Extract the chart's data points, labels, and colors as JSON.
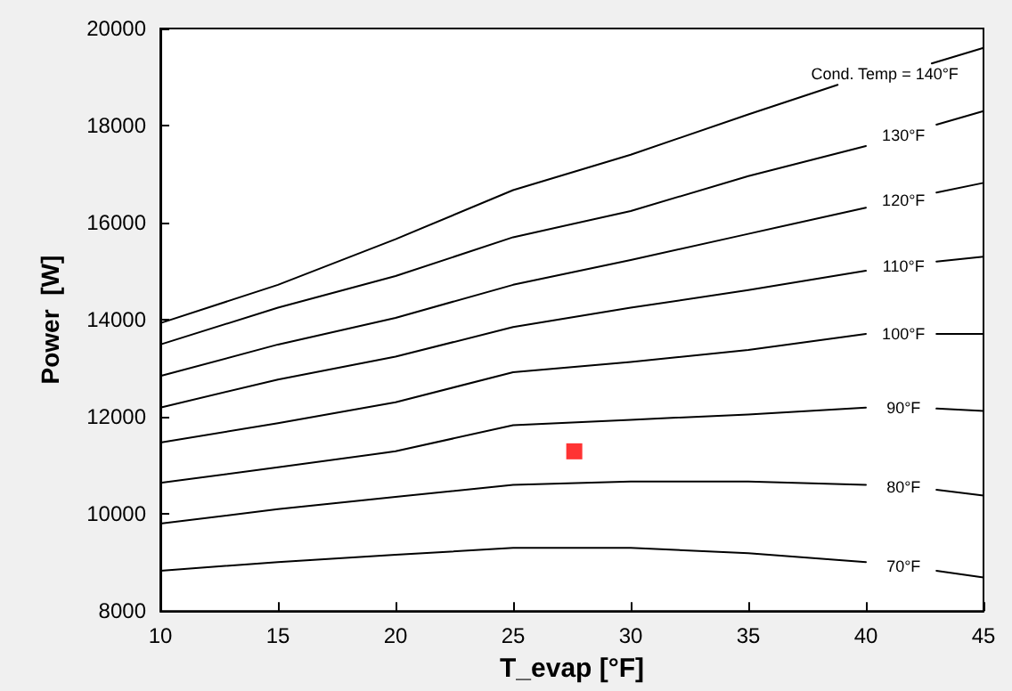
{
  "chart_data": {
    "type": "line",
    "xlabel": "T_evap [°F]",
    "ylabel": "Power  [W]",
    "xlim": [
      10,
      45
    ],
    "xticks": [
      10,
      15,
      20,
      25,
      30,
      35,
      40,
      45
    ],
    "ylim": [
      8000,
      20000
    ],
    "yticks": [
      8000,
      10000,
      12000,
      14000,
      16000,
      18000,
      20000
    ],
    "grid": false,
    "legend": false,
    "line_style": "solid",
    "series": [
      {
        "name": "70°F",
        "color": "#000000",
        "x": [
          10,
          15,
          20,
          25,
          30,
          35,
          40,
          41.6,
          43,
          45
        ],
        "values": [
          8830,
          9010,
          9160,
          9300,
          9300,
          9190,
          9010,
          null,
          8830,
          8690
        ]
      },
      {
        "name": "80°F",
        "color": "#000000",
        "x": [
          10,
          15,
          20,
          25,
          30,
          35,
          40,
          41.6,
          43,
          45
        ],
        "values": [
          9800,
          10100,
          10350,
          10600,
          10670,
          10670,
          10600,
          null,
          10500,
          10380
        ]
      },
      {
        "name": "90°F",
        "color": "#000000",
        "x": [
          10,
          15,
          20,
          25,
          30,
          35,
          40,
          41.6,
          43,
          45
        ],
        "values": [
          10640,
          10960,
          11290,
          11830,
          11940,
          12050,
          12190,
          null,
          12170,
          12120
        ]
      },
      {
        "name": "100°F",
        "color": "#000000",
        "x": [
          10,
          15,
          20,
          25,
          30,
          35,
          40,
          41.6,
          43,
          45
        ],
        "values": [
          11470,
          11870,
          12300,
          12920,
          13130,
          13380,
          13710,
          null,
          13710,
          13710
        ]
      },
      {
        "name": "110°F",
        "color": "#000000",
        "x": [
          10,
          15,
          20,
          25,
          30,
          35,
          40,
          41.6,
          43,
          45
        ],
        "values": [
          12190,
          12770,
          13240,
          13850,
          14250,
          14610,
          15010,
          null,
          15200,
          15300
        ]
      },
      {
        "name": "120°F",
        "color": "#000000",
        "x": [
          10,
          15,
          20,
          25,
          30,
          35,
          40,
          41.6,
          43,
          45
        ],
        "values": [
          12840,
          13490,
          14040,
          14720,
          15230,
          15770,
          16310,
          null,
          16620,
          16820
        ]
      },
      {
        "name": "130°F",
        "color": "#000000",
        "x": [
          10,
          15,
          20,
          25,
          30,
          35,
          40,
          41.6,
          43,
          45
        ],
        "values": [
          13490,
          14250,
          14900,
          15700,
          16240,
          16960,
          17580,
          null,
          18020,
          18300
        ]
      },
      {
        "name": "Cond. Temp = 140°F",
        "color": "#000000",
        "x": [
          10,
          15,
          20,
          25,
          30,
          35,
          38.8,
          40.8,
          42.8,
          45
        ],
        "values": [
          13930,
          14720,
          15660,
          16670,
          17400,
          18230,
          18840,
          null,
          19280,
          19600
        ]
      },
      {
        "type": "scatter",
        "marker": "square",
        "color": "#ff0000",
        "x": [
          27.6
        ],
        "values": [
          11290
        ]
      }
    ]
  }
}
